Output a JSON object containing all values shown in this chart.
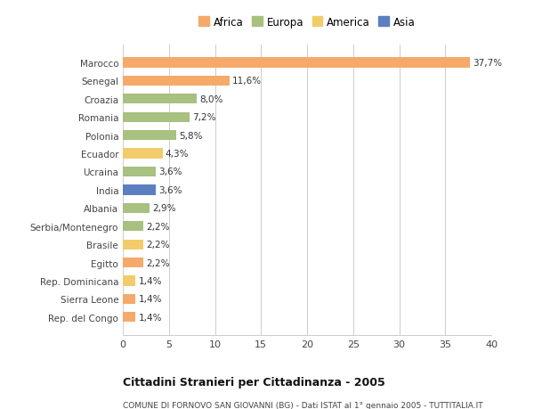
{
  "categories": [
    "Rep. del Congo",
    "Sierra Leone",
    "Rep. Dominicana",
    "Egitto",
    "Brasile",
    "Serbia/Montenegro",
    "Albania",
    "India",
    "Ucraina",
    "Ecuador",
    "Polonia",
    "Romania",
    "Croazia",
    "Senegal",
    "Marocco"
  ],
  "values": [
    1.4,
    1.4,
    1.4,
    2.2,
    2.2,
    2.2,
    2.9,
    3.6,
    3.6,
    4.3,
    5.8,
    7.2,
    8.0,
    11.6,
    37.7
  ],
  "labels": [
    "1,4%",
    "1,4%",
    "1,4%",
    "2,2%",
    "2,2%",
    "2,2%",
    "2,9%",
    "3,6%",
    "3,6%",
    "4,3%",
    "5,8%",
    "7,2%",
    "8,0%",
    "11,6%",
    "37,7%"
  ],
  "colors": [
    "#F5AA6A",
    "#F5AA6A",
    "#F2CC6A",
    "#F5AA6A",
    "#F2CC6A",
    "#A8C080",
    "#A8C080",
    "#5B7FC0",
    "#A8C080",
    "#F2CC6A",
    "#A8C080",
    "#A8C080",
    "#A8C080",
    "#F5AA6A",
    "#F5AA6A"
  ],
  "continent_colors": {
    "Africa": "#F5AA6A",
    "Europa": "#A8C080",
    "America": "#F2CC6A",
    "Asia": "#5B7FC0"
  },
  "title": "Cittadini Stranieri per Cittadinanza - 2005",
  "subtitle": "COMUNE DI FORNOVO SAN GIOVANNI (BG) - Dati ISTAT al 1° gennaio 2005 - TUTTITALIA.IT",
  "xlim": [
    0,
    40
  ],
  "xticks": [
    0,
    5,
    10,
    15,
    20,
    25,
    30,
    35,
    40
  ],
  "bg_color": "#FFFFFF",
  "grid_color": "#CCCCCC",
  "bar_height": 0.55
}
